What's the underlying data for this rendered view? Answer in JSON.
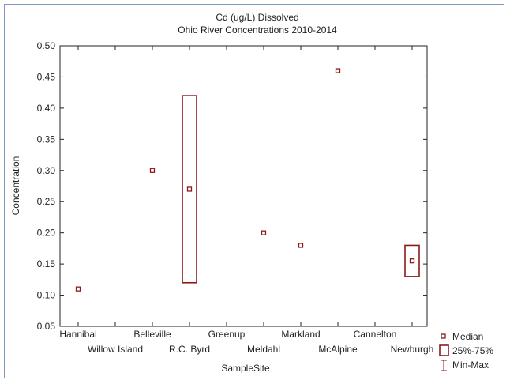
{
  "chart_data": {
    "type": "box",
    "title": "Cd (ug/L) Dissolved",
    "subtitle": "Ohio River Concentrations 2010-2014",
    "xlabel": "SampleSite",
    "ylabel": "Concentration",
    "ylim": [
      0.05,
      0.5
    ],
    "yticks": [
      "0.05",
      "0.10",
      "0.15",
      "0.20",
      "0.25",
      "0.30",
      "0.35",
      "0.40",
      "0.45",
      "0.50"
    ],
    "grid": false,
    "legend_position": "bottom-right",
    "colors": {
      "series": "#8b1a1a",
      "frame": "#7b98c3"
    },
    "categories": [
      "Hannibal",
      "Willow Island",
      "Belleville",
      "R.C. Byrd",
      "Greenup",
      "Meldahl",
      "Markland",
      "McAlpine",
      "Cannelton",
      "Newburgh"
    ],
    "boxes": [
      {
        "site": "Hannibal",
        "median": 0.11,
        "q1": 0.11,
        "q3": 0.11,
        "min": 0.11,
        "max": 0.11
      },
      {
        "site": "Willow Island",
        "median": null,
        "q1": null,
        "q3": null,
        "min": null,
        "max": null
      },
      {
        "site": "Belleville",
        "median": 0.3,
        "q1": 0.3,
        "q3": 0.3,
        "min": 0.3,
        "max": 0.3
      },
      {
        "site": "R.C. Byrd",
        "median": 0.27,
        "q1": 0.12,
        "q3": 0.42,
        "min": 0.12,
        "max": 0.42
      },
      {
        "site": "Greenup",
        "median": null,
        "q1": null,
        "q3": null,
        "min": null,
        "max": null
      },
      {
        "site": "Meldahl",
        "median": 0.2,
        "q1": 0.2,
        "q3": 0.2,
        "min": 0.2,
        "max": 0.2
      },
      {
        "site": "Markland",
        "median": 0.18,
        "q1": 0.18,
        "q3": 0.18,
        "min": 0.18,
        "max": 0.18
      },
      {
        "site": "McAlpine",
        "median": 0.46,
        "q1": 0.46,
        "q3": 0.46,
        "min": 0.46,
        "max": 0.46
      },
      {
        "site": "Cannelton",
        "median": null,
        "q1": null,
        "q3": null,
        "min": null,
        "max": null
      },
      {
        "site": "Newburgh",
        "median": 0.155,
        "q1": 0.13,
        "q3": 0.18,
        "min": 0.13,
        "max": 0.18
      }
    ],
    "legend": [
      {
        "label": "Median",
        "icon": "small-square-icon"
      },
      {
        "label": "25%-75%",
        "icon": "box-icon"
      },
      {
        "label": "Min-Max",
        "icon": "whisker-icon"
      }
    ]
  }
}
